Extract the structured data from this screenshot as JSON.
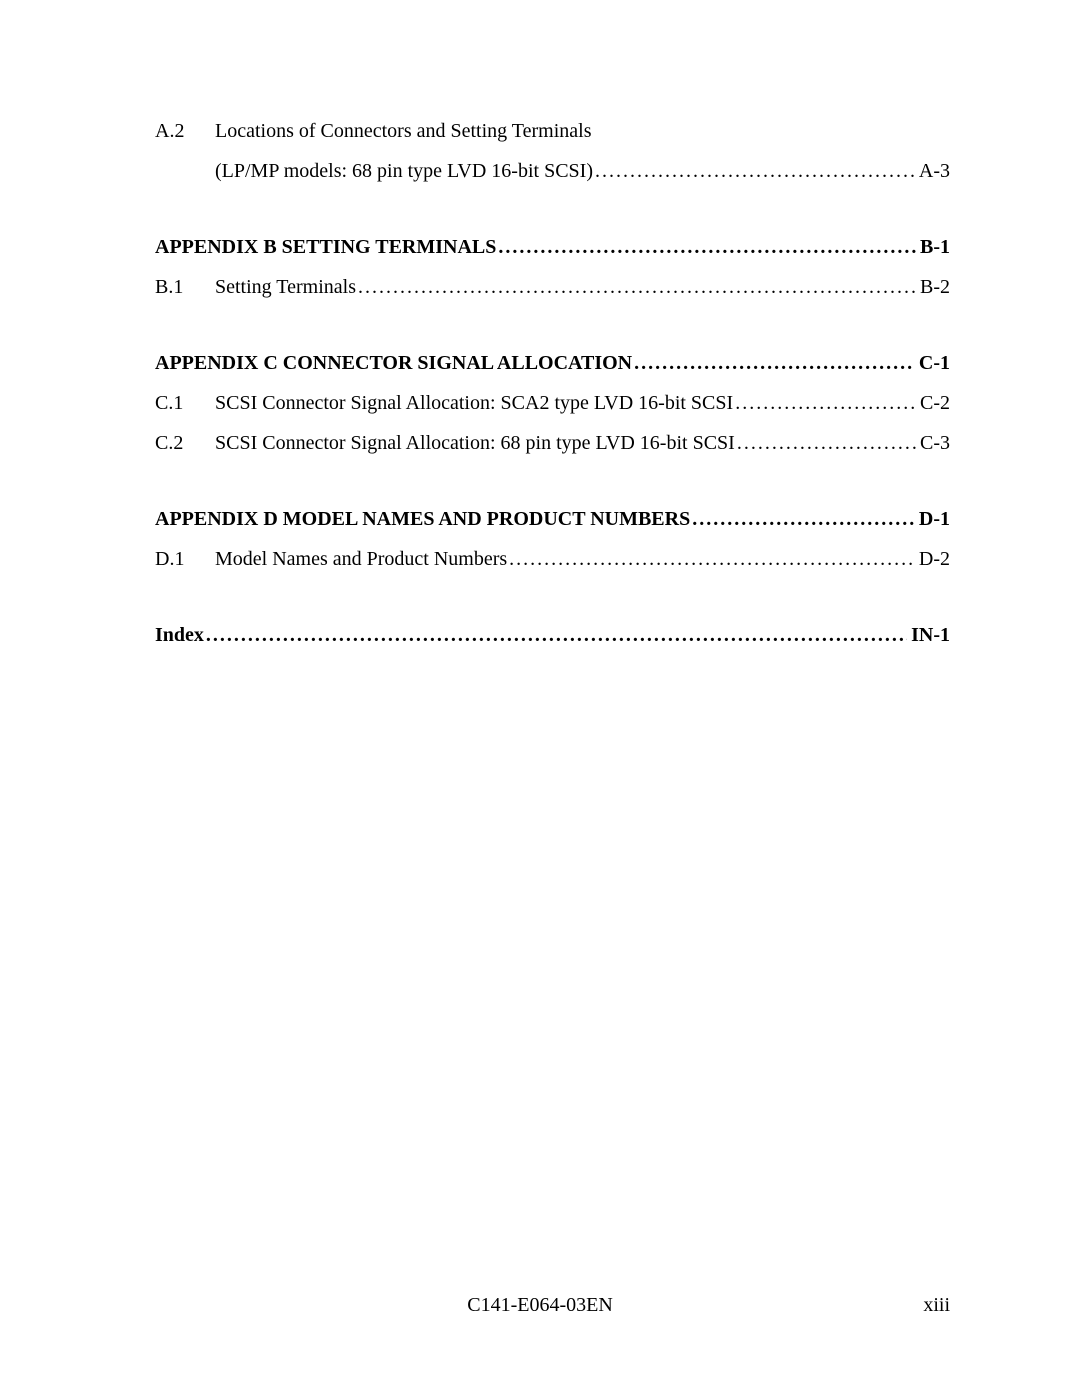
{
  "toc": {
    "a2": {
      "num": "A.2",
      "title_line1": "Locations of Connectors and Setting Terminals",
      "title_line2": "(LP/MP models:  68 pin type LVD 16-bit SCSI)",
      "page": "A-3"
    },
    "appendix_b": {
      "title": "APPENDIX B   SETTING TERMINALS",
      "page": "B-1"
    },
    "b1": {
      "num": "B.1",
      "title": "Setting Terminals",
      "page": "B-2"
    },
    "appendix_c": {
      "title": "APPENDIX C   CONNECTOR SIGNAL ALLOCATION ",
      "page": "C-1"
    },
    "c1": {
      "num": "C.1",
      "title": "SCSI Connector Signal Allocation:  SCA2 type LVD 16-bit SCSI",
      "page": "C-2"
    },
    "c2": {
      "num": "C.2",
      "title": "SCSI Connector Signal Allocation:  68 pin type LVD 16-bit SCSI ",
      "page": "C-3"
    },
    "appendix_d": {
      "title": "APPENDIX D   MODEL NAMES AND PRODUCT NUMBERS ",
      "page": "D-1"
    },
    "d1": {
      "num": "D.1",
      "title": "Model Names and Product Numbers",
      "page": "D-2"
    },
    "index": {
      "title": "Index",
      "page": " IN-1"
    }
  },
  "footer": {
    "doc_id": "C141-E064-03EN",
    "page_num": "xiii"
  },
  "leader": "................................................................................................................................................................................"
}
